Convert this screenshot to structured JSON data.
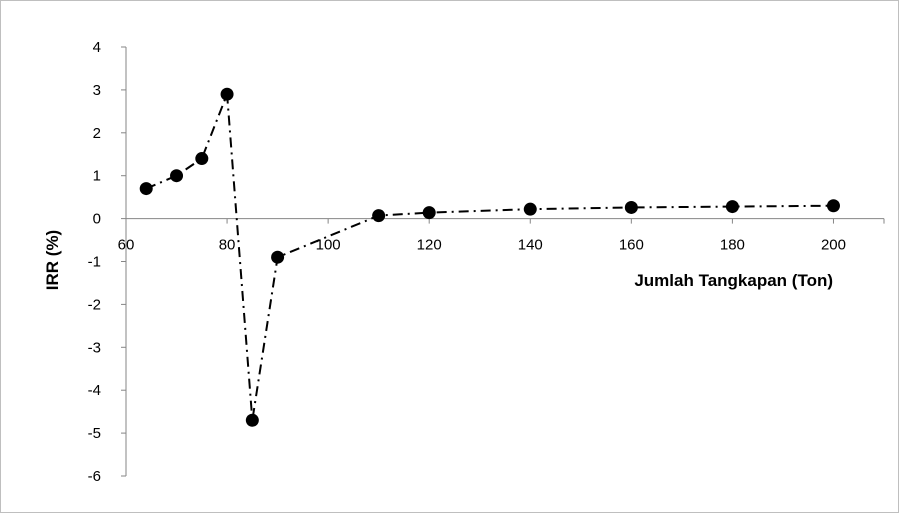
{
  "chart_data": {
    "type": "scatter",
    "title": "",
    "xlabel": "Jumlah Tangkapan (Ton)",
    "ylabel": "IRR (%)",
    "xlim": [
      60,
      210
    ],
    "ylim": [
      -6,
      4
    ],
    "x_ticks": [
      60,
      80,
      100,
      120,
      140,
      160,
      180,
      200
    ],
    "y_ticks": [
      -6,
      -5,
      -4,
      -3,
      -2,
      -1,
      0,
      1,
      2,
      3,
      4
    ],
    "grid": false,
    "legend": "none",
    "line_style": "dash-dot",
    "marker": "filled-circle",
    "color": "#000000",
    "series": [
      {
        "x": [
          64,
          70,
          75,
          80,
          85,
          90,
          110,
          120,
          140,
          160,
          180,
          200
        ],
        "y": [
          0.7,
          1.0,
          1.4,
          2.9,
          -4.7,
          -0.9,
          0.07,
          0.14,
          0.22,
          0.26,
          0.28,
          0.3
        ]
      }
    ]
  }
}
